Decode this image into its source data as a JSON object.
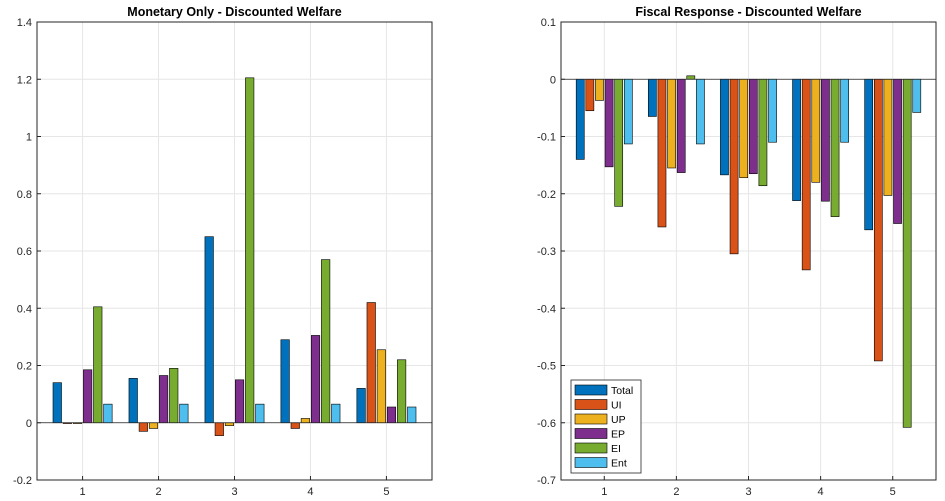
{
  "chart_data": [
    {
      "type": "bar",
      "title": "Monetary Only - Discounted Welfare",
      "categories": [
        "1",
        "2",
        "3",
        "4",
        "5"
      ],
      "ylim": [
        -0.2,
        1.4
      ],
      "yticks": [
        -0.2,
        0,
        0.2,
        0.4,
        0.6,
        0.8,
        1,
        1.2,
        1.4
      ],
      "ytick_labels": [
        "-0.2",
        "0",
        "0.2",
        "0.4",
        "0.6",
        "0.8",
        "1",
        "1.2",
        "1.4"
      ],
      "grid": true,
      "legend": null,
      "series": [
        {
          "name": "Total",
          "color": "#0072BD",
          "values": [
            0.14,
            0.155,
            0.65,
            0.29,
            0.12
          ]
        },
        {
          "name": "UI",
          "color": "#D95319",
          "values": [
            0.0,
            -0.03,
            -0.045,
            -0.02,
            0.42
          ]
        },
        {
          "name": "UP",
          "color": "#EDB120",
          "values": [
            0.0,
            -0.02,
            -0.01,
            0.015,
            0.255
          ]
        },
        {
          "name": "EP",
          "color": "#7E2F8E",
          "values": [
            0.185,
            0.165,
            0.15,
            0.305,
            0.055
          ]
        },
        {
          "name": "EI",
          "color": "#77AC30",
          "values": [
            0.405,
            0.19,
            1.205,
            0.57,
            0.22
          ]
        },
        {
          "name": "Ent",
          "color": "#4DBEEE",
          "values": [
            0.065,
            0.065,
            0.065,
            0.065,
            0.055
          ]
        }
      ]
    },
    {
      "type": "bar",
      "title": "Fiscal Response - Discounted Welfare",
      "categories": [
        "1",
        "2",
        "3",
        "4",
        "5"
      ],
      "ylim": [
        -0.7,
        0.1
      ],
      "yticks": [
        -0.7,
        -0.6,
        -0.5,
        -0.4,
        -0.3,
        -0.2,
        -0.1,
        0,
        0.1
      ],
      "ytick_labels": [
        "-0.7",
        "-0.6",
        "-0.5",
        "-0.4",
        "-0.3",
        "-0.2",
        "-0.1",
        "0",
        "0.1"
      ],
      "grid": true,
      "legend": "bottom-left",
      "series": [
        {
          "name": "Total",
          "color": "#0072BD",
          "values": [
            -0.14,
            -0.065,
            -0.167,
            -0.212,
            -0.263
          ]
        },
        {
          "name": "UI",
          "color": "#D95319",
          "values": [
            -0.055,
            -0.258,
            -0.305,
            -0.333,
            -0.492
          ]
        },
        {
          "name": "UP",
          "color": "#EDB120",
          "values": [
            -0.037,
            -0.155,
            -0.172,
            -0.18,
            -0.203
          ]
        },
        {
          "name": "EP",
          "color": "#7E2F8E",
          "values": [
            -0.153,
            -0.163,
            -0.165,
            -0.213,
            -0.252
          ]
        },
        {
          "name": "EI",
          "color": "#77AC30",
          "values": [
            -0.222,
            0.006,
            -0.186,
            -0.24,
            -0.608
          ]
        },
        {
          "name": "Ent",
          "color": "#4DBEEE",
          "values": [
            -0.113,
            -0.113,
            -0.11,
            -0.11,
            -0.058
          ]
        }
      ]
    }
  ]
}
